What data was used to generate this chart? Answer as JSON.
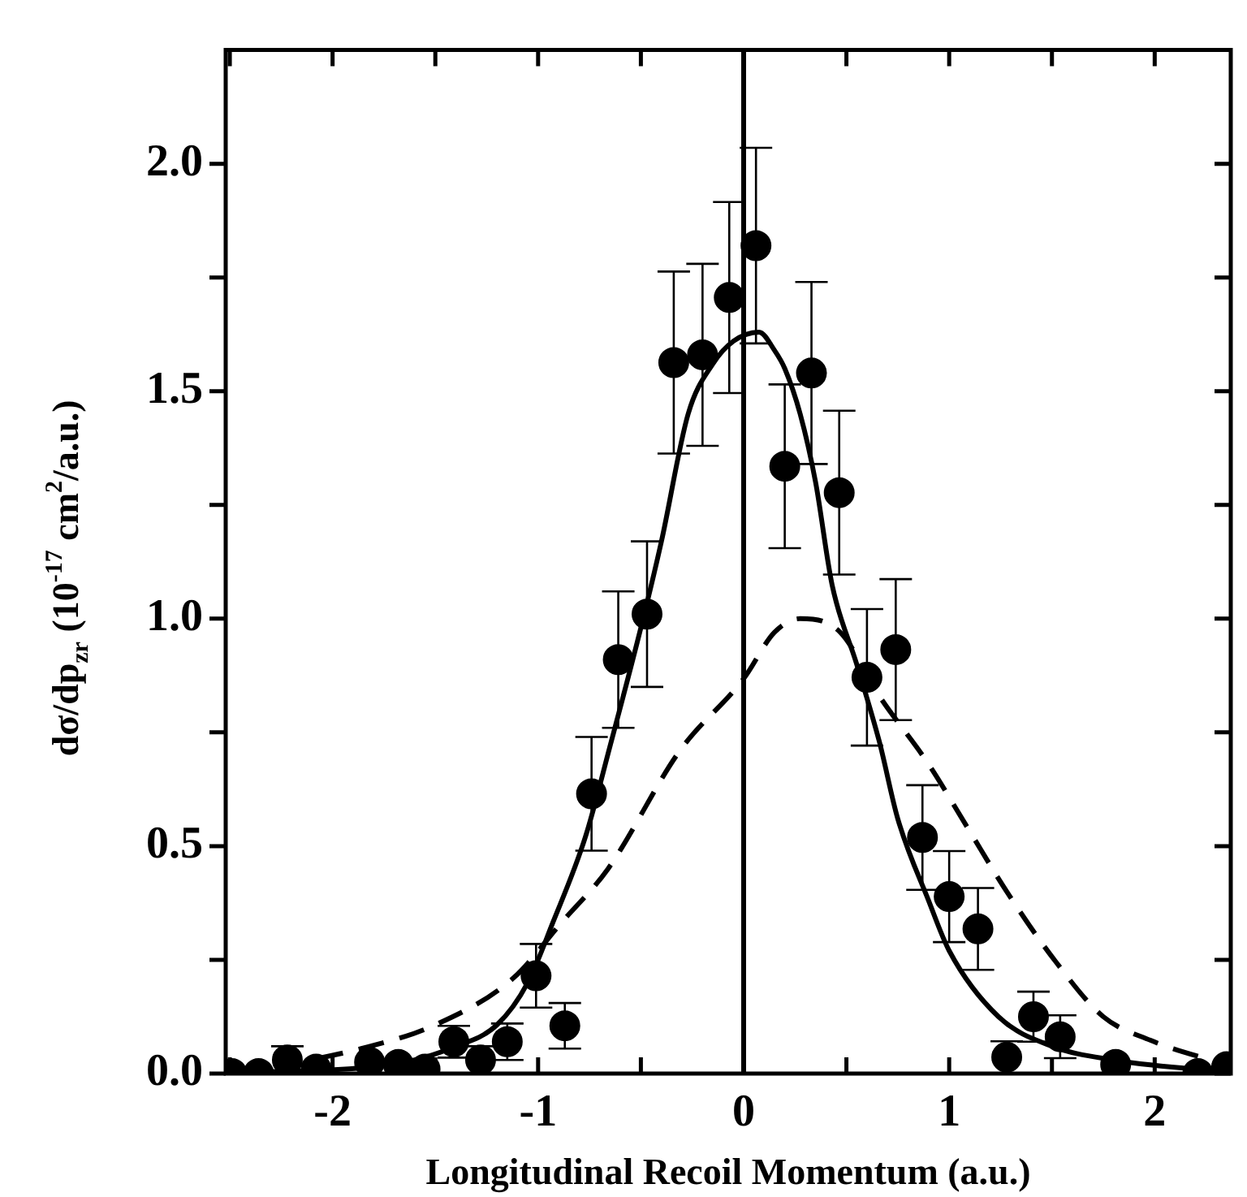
{
  "chart_data": {
    "type": "scatter",
    "xlabel": "Longitudinal Recoil Momentum (a.u.)",
    "ylabel": "dσ/dp$_{zr}$ (10$^{-17}$ cm$^{2}$/a.u.)",
    "xlim": [
      -2.52,
      2.37
    ],
    "ylim": [
      0,
      2.25
    ],
    "xticks": [
      {
        "value": -2.5,
        "label": null
      },
      -2,
      {
        "value": -1.5,
        "label": null
      },
      -1,
      {
        "value": -0.5,
        "label": null
      },
      0,
      {
        "value": 0.5,
        "label": null
      },
      1,
      {
        "value": 1.5,
        "label": null
      },
      2
    ],
    "yticks": [
      {
        "value": 0,
        "label": "0.0"
      },
      {
        "value": 0.25,
        "label": null
      },
      0.5,
      {
        "value": 0.75,
        "label": null
      },
      {
        "value": 1,
        "label": "1.0"
      },
      {
        "value": 1.25,
        "label": null
      },
      1.5,
      {
        "value": 1.75,
        "label": null
      },
      {
        "value": 2,
        "label": "2.0"
      }
    ],
    "grid": false,
    "legend": false,
    "ref_lines": [
      {
        "axis": "x",
        "value": 0,
        "color": "#000000",
        "line_style": "solid"
      }
    ],
    "series": [
      {
        "type": "scatter",
        "color": "#000000",
        "marker": "circle",
        "x": [
          -2.49,
          -2.36,
          -2.22,
          -2.08,
          -1.82,
          -1.68,
          -1.55,
          -1.41,
          -1.28,
          -1.15,
          -1.01,
          -0.87,
          -0.74,
          -0.61,
          -0.47,
          -0.34,
          -0.2,
          -0.07,
          0.06,
          0.2,
          0.33,
          0.465,
          0.6,
          0.74,
          0.87,
          1.0,
          1.14,
          1.28,
          1.41,
          1.54,
          1.81,
          2.21,
          2.35
        ],
        "values": [
          0.0,
          0.0,
          0.03,
          0.01,
          0.025,
          0.02,
          0.01,
          0.07,
          0.03,
          0.07,
          0.215,
          0.105,
          0.615,
          0.91,
          1.01,
          1.563,
          1.58,
          1.706,
          1.82,
          1.335,
          1.54,
          1.277,
          0.871,
          0.932,
          0.519,
          0.389,
          0.318,
          0.036,
          0.125,
          0.081,
          0.02,
          0.0,
          0.015
        ],
        "errors": [
          null,
          null,
          0.03,
          null,
          null,
          null,
          null,
          0.035,
          0.03,
          0.04,
          0.07,
          0.05,
          0.125,
          0.15,
          0.16,
          0.2,
          0.2,
          0.21,
          0.215,
          0.18,
          0.2,
          0.18,
          0.15,
          0.155,
          0.115,
          0.1,
          0.09,
          0.035,
          0.055,
          0.047,
          null,
          null,
          null
        ]
      },
      {
        "type": "line",
        "color": "#000000",
        "marker": "none",
        "line_style": "solid",
        "x": [
          -2.52,
          -2.05,
          -1.8,
          -1.6,
          -1.43,
          -1.2,
          -1.05,
          -0.93,
          -0.77,
          -0.65,
          -0.5,
          -0.4,
          -0.27,
          -0.15,
          -0.05,
          0.075,
          0.15,
          0.2,
          0.275,
          0.35,
          0.43,
          0.55,
          0.66,
          0.75,
          0.9,
          1.0,
          1.24,
          1.5,
          1.8,
          2.2,
          2.37
        ],
        "values": [
          0.003,
          0.007,
          0.015,
          0.03,
          0.055,
          0.107,
          0.2,
          0.33,
          0.52,
          0.72,
          0.98,
          1.17,
          1.45,
          1.56,
          1.61,
          1.63,
          1.59,
          1.55,
          1.45,
          1.3,
          1.075,
          0.9,
          0.73,
          0.56,
          0.38,
          0.27,
          0.125,
          0.06,
          0.03,
          0.01,
          0.007
        ]
      },
      {
        "type": "line",
        "color": "#000000",
        "marker": "none",
        "line_style": "dashed",
        "x": [
          -2.48,
          -2.24,
          -1.86,
          -1.5,
          -1.12,
          -0.89,
          -0.66,
          -0.31,
          0,
          0.15,
          0.275,
          0.47,
          0.66,
          0.9,
          1.09,
          1.28,
          1.52,
          1.75,
          1.98,
          2.21,
          2.37
        ],
        "values": [
          0.007,
          0.02,
          0.055,
          0.107,
          0.21,
          0.33,
          0.45,
          0.71,
          0.868,
          0.97,
          1.0,
          0.97,
          0.83,
          0.68,
          0.54,
          0.4,
          0.245,
          0.125,
          0.073,
          0.038,
          0.02
        ]
      }
    ]
  }
}
